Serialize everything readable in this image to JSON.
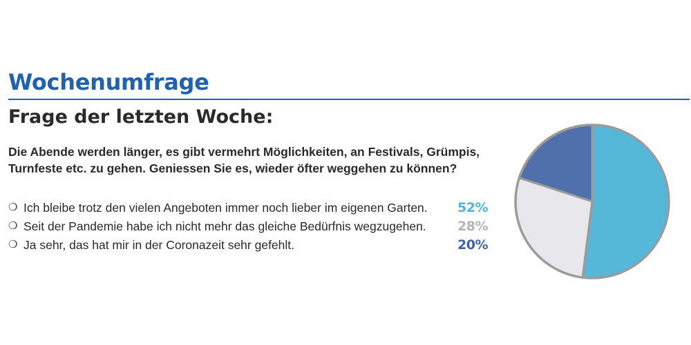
{
  "header": {
    "heading": "Wochenumfrage",
    "subtitle": "Frage der letzten Woche:",
    "accent_color": "#1f62b0"
  },
  "question": "Die Abende werden länger, es gibt vermehrt Möglichkeiten, an Festivals, Grümpis, Turnfeste etc. zu gehen. Geniessen Sie es, wieder öfter weggehen zu können?",
  "options": [
    {
      "bullet": "❍",
      "text": "Ich bleibe trotz den vielen Angeboten immer noch lieber im eigenen Garten.",
      "percent_label": "52%",
      "color": "#4fb6d6"
    },
    {
      "bullet": "❍",
      "text": "Seit der Pandemie habe ich nicht mehr das gleiche Bedürfnis wegzugehen.",
      "percent_label": "28%",
      "color": "#b3b3b3"
    },
    {
      "bullet": "❍",
      "text": "Ja sehr, das hat mir in der Coronazeit sehr gefehlt.",
      "percent_label": "20%",
      "color": "#3e62a8"
    }
  ],
  "chart_data": {
    "type": "pie",
    "values": [
      52,
      28,
      20
    ],
    "colors": [
      "#55b8d8",
      "#e8e8ec",
      "#5070ac"
    ],
    "outline_color": "#9b9b9b",
    "start": "12 o'clock",
    "direction": "clockwise"
  }
}
